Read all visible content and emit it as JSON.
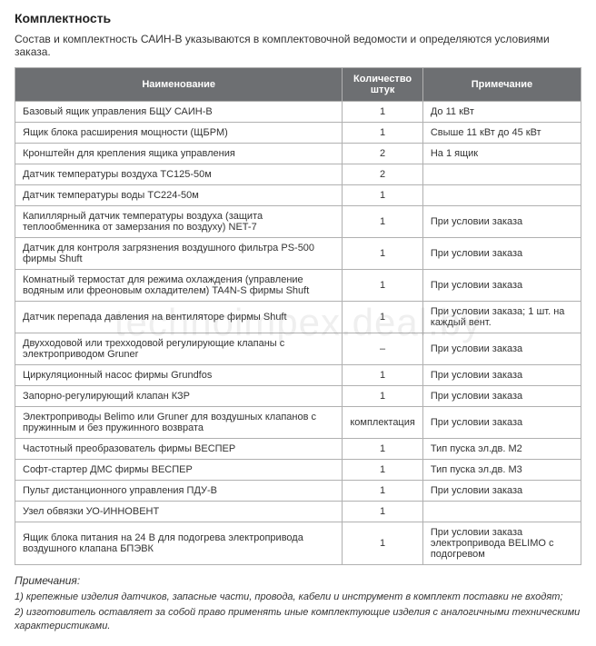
{
  "title": "Комплектность",
  "intro": "Состав и комплектность САИН-В указываются в комплектовочной ведомости  и определяются условиями заказа.",
  "watermark": "technoimpex.deal.by",
  "table": {
    "headers": {
      "name": "Наименование",
      "qty": "Количество штук",
      "note": "Примечание"
    },
    "rows": [
      {
        "name": "Базовый ящик управления БЩУ САИН-В",
        "qty": "1",
        "note": "До 11 кВт"
      },
      {
        "name": "Ящик блока расширения мощности (ЩБРМ)",
        "qty": "1",
        "note": "Свыше 11 кВт до 45 кВт"
      },
      {
        "name": "Кронштейн для крепления ящика управления",
        "qty": "2",
        "note": "На 1 ящик"
      },
      {
        "name": "Датчик температуры воздуха ТС125-50м",
        "qty": "2",
        "note": ""
      },
      {
        "name": "Датчик температуры воды ТС224-50м",
        "qty": "1",
        "note": ""
      },
      {
        "name": "Капиллярный датчик температуры воздуха (защита теплообменника от замерзания по воздуху) NET-7",
        "qty": "1",
        "note": "При условии заказа"
      },
      {
        "name": "Датчик для контроля загрязнения воздушного фильтра PS-500 фирмы Shuft",
        "qty": "1",
        "note": "При условии заказа"
      },
      {
        "name": "Комнатный термостат для режима охлаждения (управление водяным или фреоновым охладителем) TA4N-S фирмы Shuft",
        "qty": "1",
        "note": "При условии заказа"
      },
      {
        "name": "Датчик перепада давления на вентиляторе фирмы Shuft",
        "qty": "1",
        "note": "При условии заказа; 1 шт. на каждый  вент."
      },
      {
        "name": "Двухходовой или трехходовой регулирующие клапаны с электроприводом Gruner",
        "qty": "–",
        "note": "При условии заказа"
      },
      {
        "name": "Циркуляционный насос фирмы Grundfos",
        "qty": "1",
        "note": "При условии заказа"
      },
      {
        "name": "Запорно-регулирующий клапан КЗР",
        "qty": "1",
        "note": "При условии заказа"
      },
      {
        "name": "Электроприводы Belimo или Gruner для воздушных клапанов с пружинным и без пружинного возврата",
        "qty": "комплектация",
        "note": "При условии заказа"
      },
      {
        "name": "Частотный преобразователь фирмы ВЕСПЕР",
        "qty": "1",
        "note": "Тип пуска эл.дв. М2"
      },
      {
        "name": "Софт-стартер ДМС фирмы ВЕСПЕР",
        "qty": "1",
        "note": "Тип пуска эл.дв. М3"
      },
      {
        "name": "Пульт дистанционного управления ПДУ-В",
        "qty": "1",
        "note": "При условии заказа"
      },
      {
        "name": "Узел обвязки УО-ИННОВЕНТ",
        "qty": "1",
        "note": ""
      },
      {
        "name": "Ящик блока питания на 24 В для подогрева электропривода воздушного клапана  БПЭВК",
        "qty": "1",
        "note": "При условии заказа электропривода BELIMO с подогревом"
      }
    ]
  },
  "notes": {
    "heading": "Примечания:",
    "items": [
      "1)  крепежные изделия датчиков, запасные части, провода, кабели и инструмент в комплект поставки не входят;",
      "2)  изготовитель оставляет за собой право применять иные комплектующие изделия с аналогичными техническими характеристиками."
    ]
  },
  "colors": {
    "header_bg": "#6d6f72",
    "header_text": "#ffffff",
    "border": "#b0b0b0",
    "text": "#333333",
    "background": "#ffffff",
    "watermark": "rgba(120,120,120,0.12)"
  }
}
